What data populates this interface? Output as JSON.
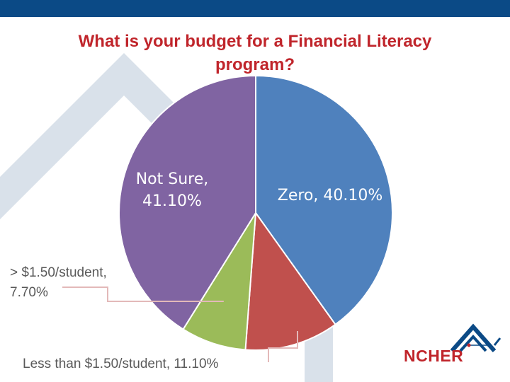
{
  "theme": {
    "top_bar": "#0b4a86",
    "title_color": "#c0252b",
    "background_deco": "#d9e1ea"
  },
  "chart_data": {
    "type": "pie",
    "title": "What is your budget for a Financial Literacy program?",
    "title_lines": [
      "What is your budget for a Financial Literacy",
      "program?"
    ],
    "slices": [
      {
        "name": "Zero",
        "value": 40.1,
        "label": "Zero, 40.10%",
        "color": "#4f81bd"
      },
      {
        "name": "Less than $1.50/student",
        "value": 11.1,
        "label_lines": [
          "Less than $1.50/student,",
          "11.10%"
        ],
        "color": "#c0504d"
      },
      {
        "name": "> $1.50/student",
        "value": 7.7,
        "label_lines": [
          "> $1.50/student,",
          "7.70%"
        ],
        "color": "#9bbb59"
      },
      {
        "name": "Not Sure",
        "value": 41.1,
        "label_lines": [
          "Not Sure,",
          "41.10%"
        ],
        "color": "#8064a2"
      }
    ],
    "legend": "none"
  },
  "logo": {
    "text": "NCHER",
    "name": "ncher-logo"
  }
}
